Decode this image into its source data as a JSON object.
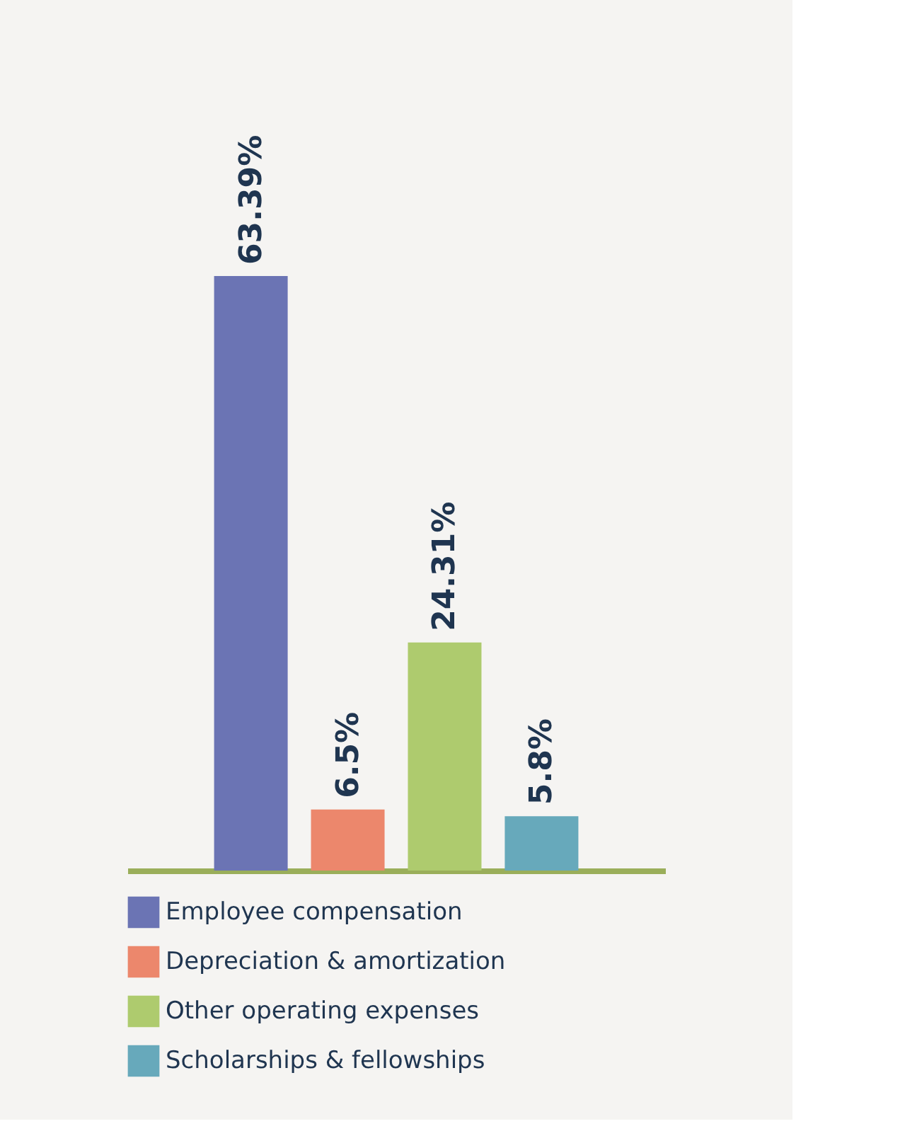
{
  "chart_data": {
    "type": "bar",
    "categories": [
      null
    ],
    "series": [
      {
        "name": "Employee compensation",
        "color": "#6b74b4",
        "values": [
          63.39
        ],
        "value_labels": [
          "63.39%"
        ]
      },
      {
        "name": "Depreciation & amortization",
        "color": "#ec876c",
        "values": [
          6.5
        ],
        "value_labels": [
          "6.5%"
        ]
      },
      {
        "name": "Other operating expenses",
        "color": "#aecb6e",
        "values": [
          24.31
        ],
        "value_labels": [
          "24.31%"
        ]
      },
      {
        "name": "Scholarships & fellowships",
        "color": "#67a9bb",
        "values": [
          5.8
        ],
        "value_labels": [
          "5.8%"
        ]
      }
    ],
    "legend": "bottom",
    "tick_labels": false,
    "grid": false
  }
}
